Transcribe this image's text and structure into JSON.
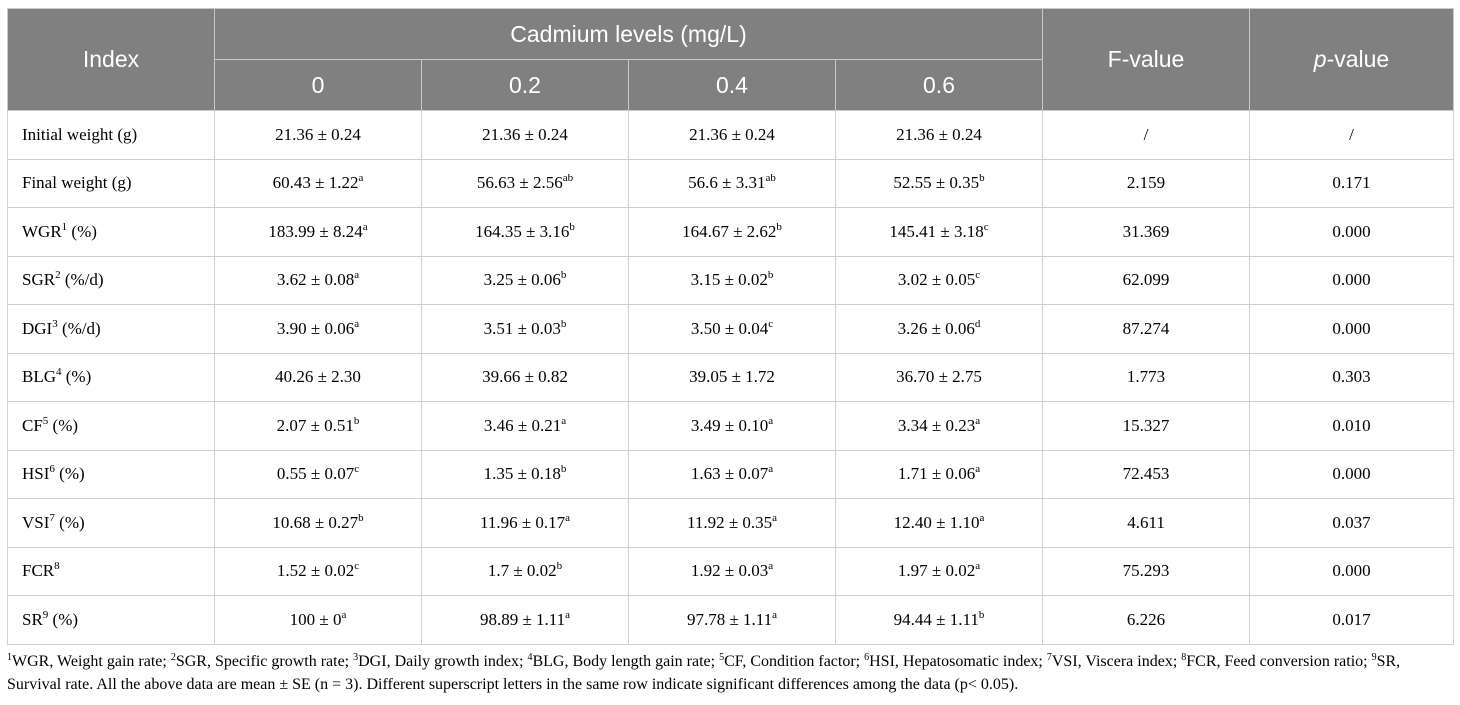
{
  "header": {
    "index": "Index",
    "group": "Cadmium levels (mg/L)",
    "levels": [
      "0",
      "0.2",
      "0.4",
      "0.6"
    ],
    "f_value": "F-value",
    "p_value_italic": "p",
    "p_value_rest": "-value"
  },
  "rows": [
    {
      "label": "Initial weight (g)",
      "sup": "",
      "unit": "",
      "cells": [
        {
          "v": "21.36 ± 0.24",
          "s": ""
        },
        {
          "v": "21.36 ± 0.24",
          "s": ""
        },
        {
          "v": "21.36 ± 0.24",
          "s": ""
        },
        {
          "v": "21.36 ± 0.24",
          "s": ""
        }
      ],
      "f": "/",
      "p": "/"
    },
    {
      "label": "Final weight (g)",
      "sup": "",
      "unit": "",
      "cells": [
        {
          "v": "60.43 ± 1.22",
          "s": "a"
        },
        {
          "v": "56.63 ± 2.56",
          "s": "ab"
        },
        {
          "v": "56.6 ± 3.31",
          "s": "ab"
        },
        {
          "v": "52.55 ± 0.35",
          "s": "b"
        }
      ],
      "f": "2.159",
      "p": "0.171"
    },
    {
      "label": "WGR",
      "sup": "1",
      "unit": " (%)",
      "cells": [
        {
          "v": "183.99 ± 8.24",
          "s": "a"
        },
        {
          "v": "164.35 ± 3.16",
          "s": "b"
        },
        {
          "v": "164.67 ± 2.62",
          "s": "b"
        },
        {
          "v": "145.41 ± 3.18",
          "s": "c"
        }
      ],
      "f": "31.369",
      "p": "0.000"
    },
    {
      "label": "SGR",
      "sup": "2",
      "unit": " (%/d)",
      "cells": [
        {
          "v": "3.62 ± 0.08",
          "s": "a"
        },
        {
          "v": "3.25 ± 0.06",
          "s": "b"
        },
        {
          "v": "3.15 ± 0.02",
          "s": "b"
        },
        {
          "v": "3.02 ± 0.05",
          "s": "c"
        }
      ],
      "f": "62.099",
      "p": "0.000"
    },
    {
      "label": "DGI",
      "sup": "3",
      "unit": " (%/d)",
      "cells": [
        {
          "v": "3.90 ± 0.06",
          "s": "a"
        },
        {
          "v": "3.51 ± 0.03",
          "s": "b"
        },
        {
          "v": "3.50 ± 0.04",
          "s": "c"
        },
        {
          "v": "3.26 ± 0.06",
          "s": "d"
        }
      ],
      "f": "87.274",
      "p": "0.000"
    },
    {
      "label": "BLG",
      "sup": "4",
      "unit": " (%)",
      "cells": [
        {
          "v": "40.26 ± 2.30",
          "s": ""
        },
        {
          "v": "39.66 ± 0.82",
          "s": ""
        },
        {
          "v": "39.05 ± 1.72",
          "s": ""
        },
        {
          "v": "36.70 ± 2.75",
          "s": ""
        }
      ],
      "f": "1.773",
      "p": "0.303"
    },
    {
      "label": "CF",
      "sup": "5",
      "unit": " (%)",
      "cells": [
        {
          "v": "2.07 ± 0.51",
          "s": "b"
        },
        {
          "v": "3.46 ± 0.21",
          "s": "a"
        },
        {
          "v": "3.49 ± 0.10",
          "s": "a"
        },
        {
          "v": "3.34 ± 0.23",
          "s": "a"
        }
      ],
      "f": "15.327",
      "p": "0.010"
    },
    {
      "label": "HSI",
      "sup": "6",
      "unit": " (%)",
      "cells": [
        {
          "v": "0.55 ± 0.07",
          "s": "c"
        },
        {
          "v": "1.35 ± 0.18",
          "s": "b"
        },
        {
          "v": "1.63 ± 0.07",
          "s": "a"
        },
        {
          "v": "1.71 ± 0.06",
          "s": "a"
        }
      ],
      "f": "72.453",
      "p": "0.000"
    },
    {
      "label": "VSI",
      "sup": "7",
      "unit": " (%)",
      "cells": [
        {
          "v": "10.68 ± 0.27",
          "s": "b"
        },
        {
          "v": "11.96 ± 0.17",
          "s": "a"
        },
        {
          "v": "11.92 ± 0.35",
          "s": "a"
        },
        {
          "v": "12.40 ± 1.10",
          "s": "a"
        }
      ],
      "f": "4.611",
      "p": "0.037"
    },
    {
      "label": "FCR",
      "sup": "8",
      "unit": "",
      "cells": [
        {
          "v": "1.52 ± 0.02",
          "s": "c"
        },
        {
          "v": "1.7 ± 0.02",
          "s": "b"
        },
        {
          "v": "1.92 ± 0.03",
          "s": "a"
        },
        {
          "v": "1.97 ± 0.02",
          "s": "a"
        }
      ],
      "f": "75.293",
      "p": "0.000"
    },
    {
      "label": "SR",
      "sup": "9",
      "unit": " (%)",
      "cells": [
        {
          "v": "100 ± 0",
          "s": "a"
        },
        {
          "v": "98.89 ± 1.11",
          "s": "a"
        },
        {
          "v": "97.78 ± 1.11",
          "s": "a"
        },
        {
          "v": "94.44 ± 1.11",
          "s": "b"
        }
      ],
      "f": "6.226",
      "p": "0.017"
    }
  ],
  "footnote": [
    {
      "s": "1",
      "t": "WGR, Weight gain rate; "
    },
    {
      "s": "2",
      "t": "SGR, Specific growth rate; "
    },
    {
      "s": "3",
      "t": "DGI, Daily growth index; "
    },
    {
      "s": "4",
      "t": "BLG, Body length gain rate; "
    },
    {
      "s": "5",
      "t": "CF, Condition factor; "
    },
    {
      "s": "6",
      "t": "HSI, Hepatosomatic index; "
    },
    {
      "s": "7",
      "t": "VSI, Viscera index; "
    },
    {
      "s": "8",
      "t": "FCR, Feed conversion ratio; "
    },
    {
      "s": "9",
      "t": "SR, Survival rate. All the above data are mean ± SE (n = 3). Different superscript letters in the same row indicate significant differences among the data (p< 0.05)."
    }
  ]
}
